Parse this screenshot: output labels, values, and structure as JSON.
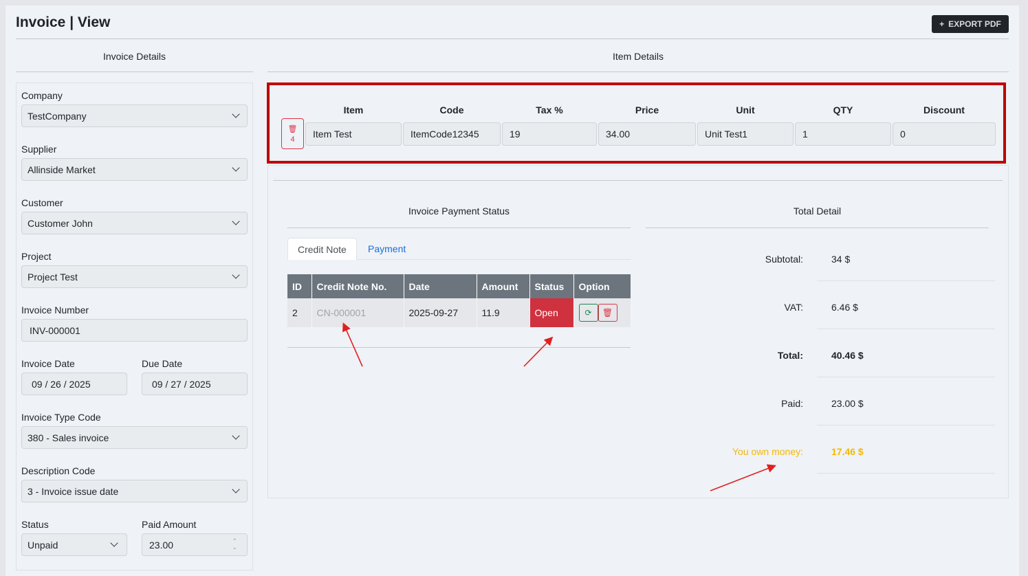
{
  "header": {
    "title": "Invoice | View",
    "export_label": "EXPORT PDF"
  },
  "sections": {
    "invoice_details": "Invoice Details",
    "item_details": "Item Details",
    "payment_status": "Invoice Payment Status",
    "total_detail": "Total Detail"
  },
  "form": {
    "company": {
      "label": "Company",
      "value": "TestCompany"
    },
    "supplier": {
      "label": "Supplier",
      "value": "Allinside Market"
    },
    "customer": {
      "label": "Customer",
      "value": "Customer John"
    },
    "project": {
      "label": "Project",
      "value": "Project Test"
    },
    "invoice_number": {
      "label": "Invoice Number",
      "value": "INV-000001"
    },
    "invoice_date": {
      "label": "Invoice Date",
      "value": "09 / 26 / 2025"
    },
    "due_date": {
      "label": "Due Date",
      "value": "09 / 27 / 2025"
    },
    "invoice_type": {
      "label": "Invoice Type Code",
      "value": "380 - Sales invoice"
    },
    "description_code": {
      "label": "Description Code",
      "value": "3 - Invoice issue date"
    },
    "status": {
      "label": "Status",
      "value": "Unpaid"
    },
    "paid_amount": {
      "label": "Paid Amount",
      "value": "23.00"
    }
  },
  "items": {
    "headers": [
      "Item",
      "Code",
      "Tax %",
      "Price",
      "Unit",
      "QTY",
      "Discount"
    ],
    "row": [
      "Item Test",
      "ItemCode12345",
      "19",
      "34.00",
      "Unit Test1",
      "1",
      "0"
    ],
    "delete_count": "4"
  },
  "payment": {
    "tabs": [
      "Credit Note",
      "Payment"
    ],
    "headers": [
      "ID",
      "Credit Note No.",
      "Date",
      "Amount",
      "Status",
      "Option"
    ],
    "rows": [
      {
        "id": "2",
        "no": "CN-000001",
        "date": "2025-09-27",
        "amount": "11.9",
        "status": "Open"
      }
    ]
  },
  "totals": {
    "subtotal": {
      "label": "Subtotal:",
      "value": "34 $"
    },
    "vat": {
      "label": "VAT:",
      "value": "6.46 $"
    },
    "total": {
      "label": "Total:",
      "value": "40.46 $"
    },
    "paid": {
      "label": "Paid:",
      "value": "23.00 $"
    },
    "owe": {
      "label": "You own money:",
      "value": "17.46 $"
    }
  },
  "colors": {
    "highlight": "#c00000",
    "danger": "#d0313f",
    "warning": "#f5b800",
    "link": "#1a6fd9",
    "success": "#198754"
  }
}
